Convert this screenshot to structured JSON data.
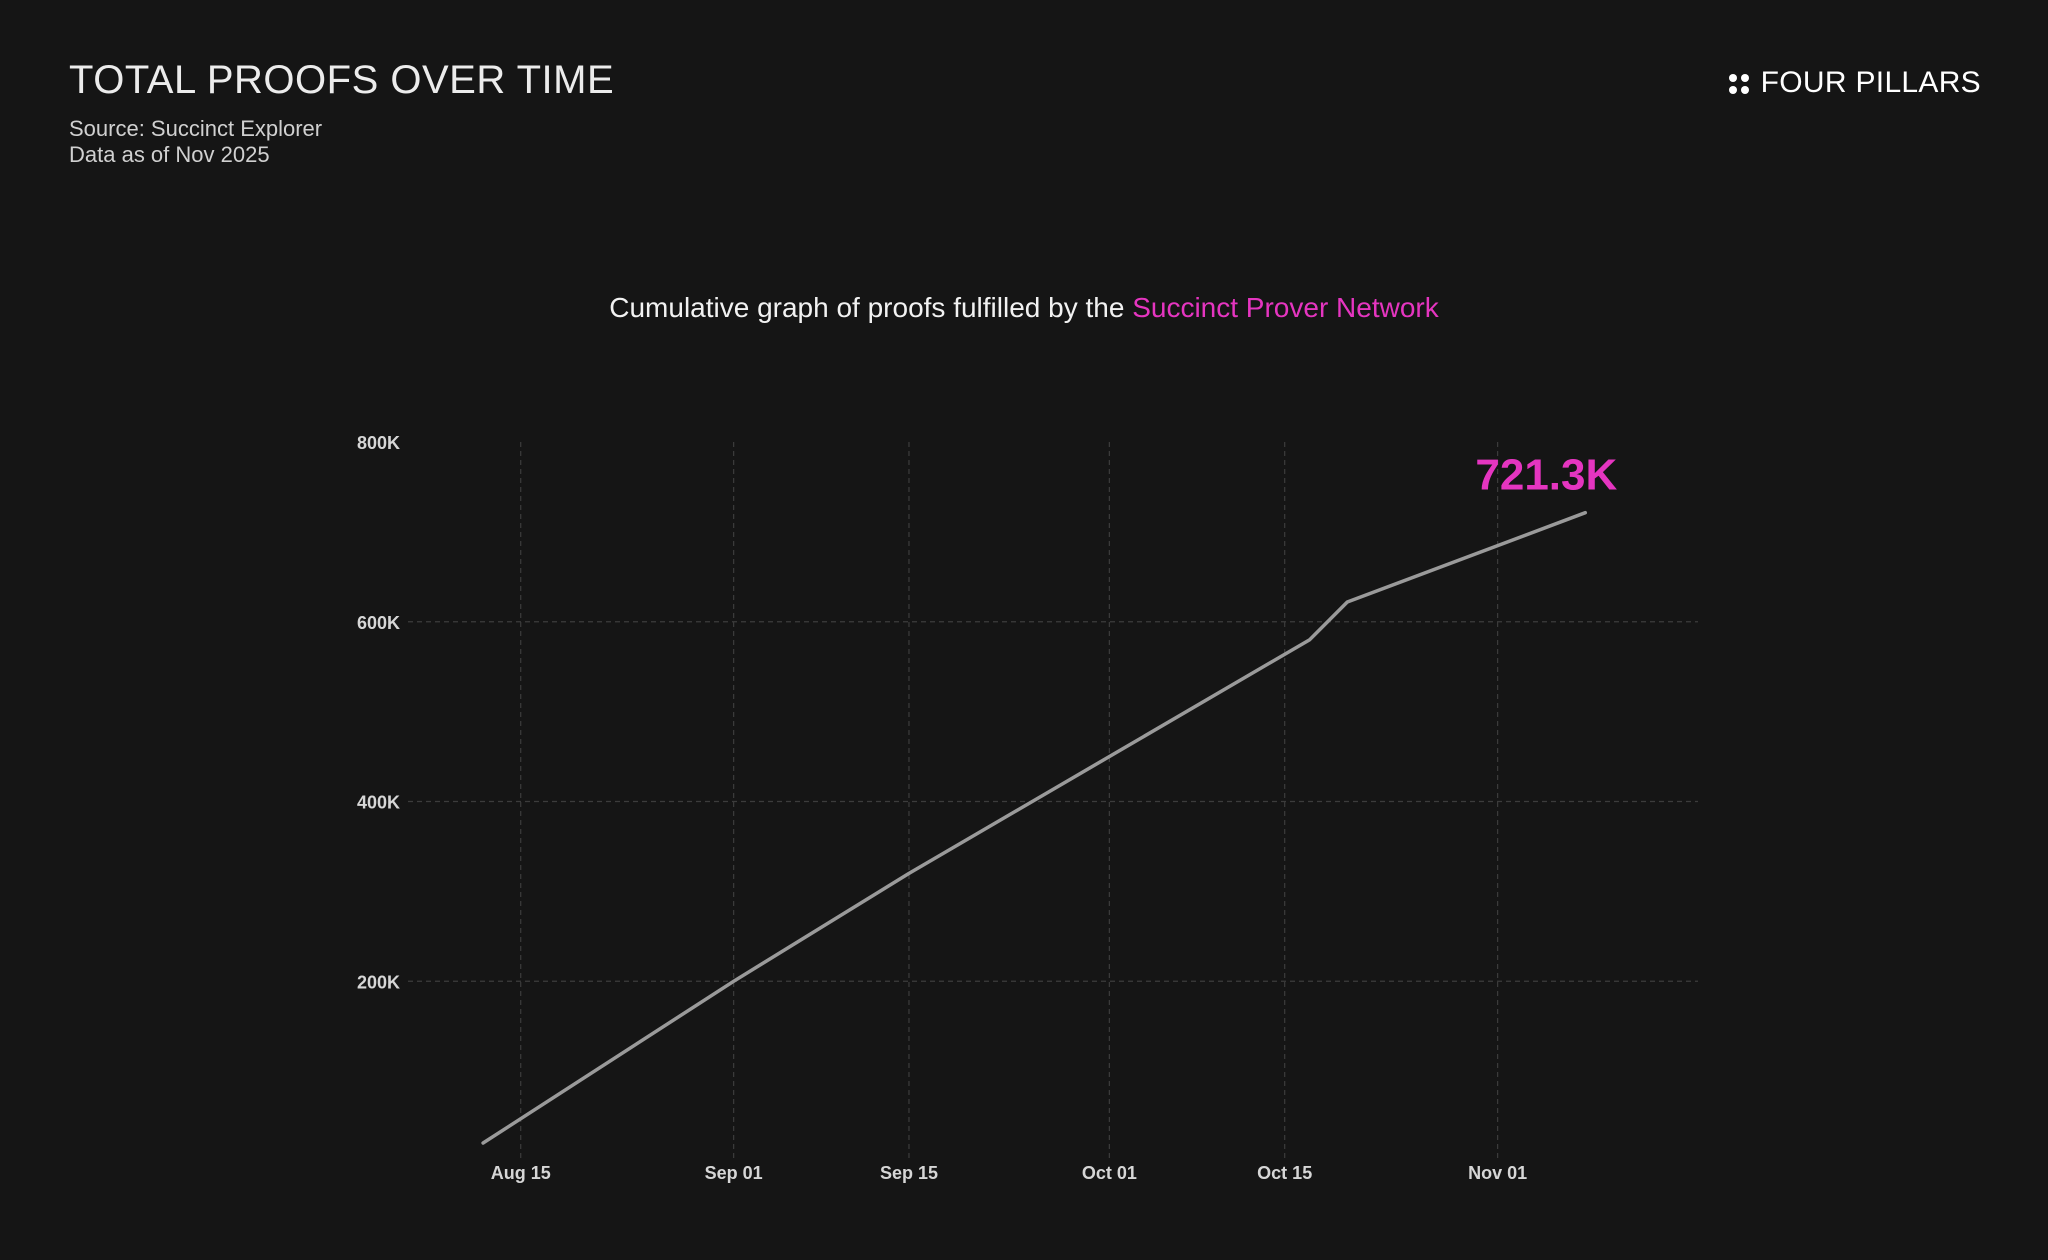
{
  "header": {
    "title": "TOTAL PROOFS OVER TIME",
    "source": "Source: Succinct Explorer",
    "data_as_of": "Data as of Nov 2025"
  },
  "logo": {
    "icon": "four-dots-icon",
    "text": "FOUR PILLARS"
  },
  "subtitle": {
    "prefix": "Cumulative graph of proofs fulfilled by the ",
    "highlight": "Succinct Prover Network"
  },
  "colors": {
    "background": "#151515",
    "accent": "#e535c0",
    "line": "#9a9a9a",
    "grid": "#3c3c3c"
  },
  "chart_data": {
    "type": "line",
    "title": "",
    "xlabel": "",
    "ylabel": "",
    "grid": true,
    "x_dates": [
      "2025-08-12",
      "2025-09-01",
      "2025-09-15",
      "2025-10-17",
      "2025-10-20",
      "2025-11-08"
    ],
    "y": [
      20000,
      200000,
      320000,
      580000,
      622000,
      721300
    ],
    "x_ticks": [
      {
        "date": "2025-08-15",
        "label": "Aug 15"
      },
      {
        "date": "2025-09-01",
        "label": "Sep 01"
      },
      {
        "date": "2025-09-15",
        "label": "Sep 15"
      },
      {
        "date": "2025-10-01",
        "label": "Oct 01"
      },
      {
        "date": "2025-10-15",
        "label": "Oct 15"
      },
      {
        "date": "2025-11-01",
        "label": "Nov 01"
      }
    ],
    "y_ticks": [
      {
        "value": 200000,
        "label": "200K"
      },
      {
        "value": 400000,
        "label": "400K"
      },
      {
        "value": 600000,
        "label": "600K"
      },
      {
        "value": 800000,
        "label": "800K"
      }
    ],
    "ylim": [
      0,
      800000
    ],
    "xlim": [
      "2025-08-06",
      "2025-11-17"
    ],
    "annotation": {
      "label": "721.3K",
      "date": "2025-11-08",
      "value": 721300
    }
  }
}
